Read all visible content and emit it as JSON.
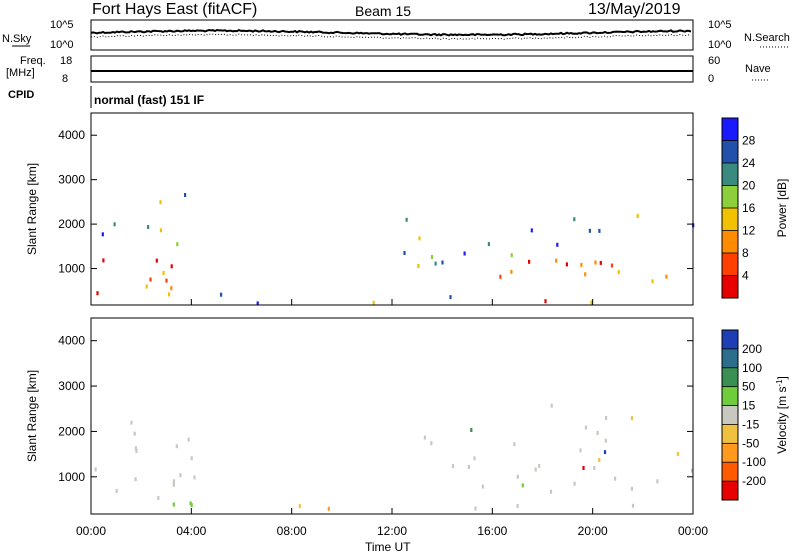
{
  "header": {
    "title": "Fort Hays East (fitACF)",
    "beam": "Beam 15",
    "date": "13/May/2019"
  },
  "side_labels": {
    "nsky": "N.Sky",
    "nsearch": "N.Search",
    "freq": "Freq.",
    "freq_unit": "[MHz]",
    "nave": "Nave",
    "cpid": "CPID",
    "cpid_value": "normal (fast) 151 IF"
  },
  "top_axes": {
    "noise_ticks": [
      "10^5",
      "10^0"
    ],
    "noise_ticks_right": [
      "10^5",
      "10^0"
    ],
    "freq_ticks": [
      "18",
      "8"
    ],
    "nave_ticks": [
      "60",
      "0"
    ]
  },
  "chart_data": [
    {
      "type": "heatmap",
      "name": "power",
      "ylabel": "Slant Range [km]",
      "ylim": [
        180,
        4500
      ],
      "yticks": [
        "1000",
        "2000",
        "3000",
        "4000"
      ],
      "yticks_values": [
        1000,
        2000,
        3000,
        4000
      ],
      "xlim": [
        0,
        24
      ],
      "colorbar_label": "Power [dB]",
      "colorbar_ticks": [
        "4",
        "8",
        "12",
        "16",
        "20",
        "24",
        "28"
      ],
      "colorbar_colors": [
        "#1a1aff",
        "#2350a8",
        "#3a8a80",
        "#8ccf3a",
        "#f2c200",
        "#ff8c00",
        "#ff4000",
        "#e60000"
      ]
    },
    {
      "type": "heatmap",
      "name": "velocity",
      "ylabel": "Slant Range [km]",
      "ylim": [
        180,
        4500
      ],
      "yticks": [
        "1000",
        "2000",
        "3000",
        "4000"
      ],
      "yticks_values": [
        1000,
        2000,
        3000,
        4000
      ],
      "xlim": [
        0,
        24
      ],
      "colorbar_label": "Velocity [m s",
      "colorbar_label_sup": "-1",
      "colorbar_label_end": "]",
      "colorbar_ticks": [
        "200",
        "100",
        "50",
        "15",
        "-15",
        "-50",
        "-100",
        "-200"
      ],
      "colorbar_colors": [
        "#1e3fb4",
        "#2d6e8c",
        "#3a8f52",
        "#6fcc3a",
        "#c8c8c0",
        "#f0c040",
        "#ff9a1e",
        "#ff5a00",
        "#e60000"
      ]
    }
  ],
  "x_axis": {
    "ticks": [
      "00:00",
      "04:00",
      "08:00",
      "12:00",
      "16:00",
      "20:00",
      "00:00"
    ],
    "label": "Time UT"
  }
}
